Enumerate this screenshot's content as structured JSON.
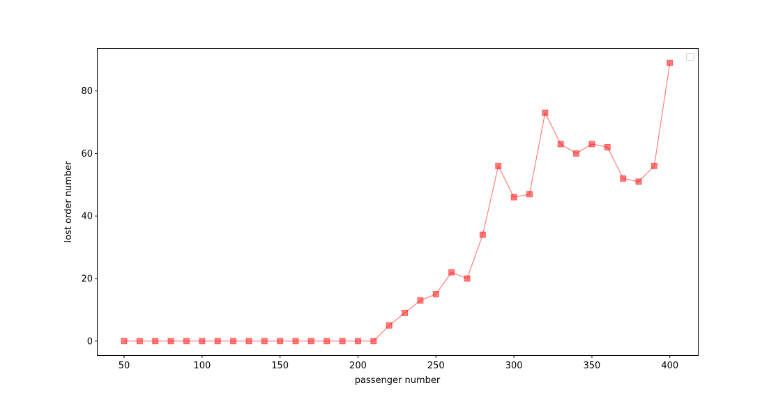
{
  "chart_data": {
    "type": "line",
    "title": "",
    "xlabel": "passenger number",
    "ylabel": "lost order number",
    "xlim": [
      33,
      418
    ],
    "ylim": [
      -4.5,
      93.5
    ],
    "xticks": [
      50,
      100,
      150,
      200,
      250,
      300,
      350,
      400
    ],
    "yticks": [
      0,
      20,
      40,
      60,
      80
    ],
    "grid": false,
    "legend": {
      "placement": "upper right",
      "entries": []
    },
    "series": [
      {
        "color": "#ff0000",
        "opacity": 0.5,
        "marker": "square",
        "x": [
          50,
          60,
          70,
          80,
          90,
          100,
          110,
          120,
          130,
          140,
          150,
          160,
          170,
          180,
          190,
          200,
          210,
          220,
          230,
          240,
          250,
          260,
          270,
          280,
          290,
          300,
          310,
          320,
          330,
          340,
          350,
          360,
          370,
          380,
          390,
          400
        ],
        "y": [
          0,
          0,
          0,
          0,
          0,
          0,
          0,
          0,
          0,
          0,
          0,
          0,
          0,
          0,
          0,
          0,
          0,
          5,
          9,
          13,
          15,
          22,
          20,
          34,
          56,
          46,
          47,
          73,
          63,
          60,
          63,
          62,
          52,
          51,
          56,
          89
        ]
      }
    ]
  }
}
